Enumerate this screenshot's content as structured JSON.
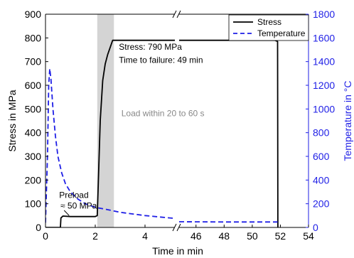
{
  "chart_data": {
    "type": "line",
    "xlabel": "Time in min",
    "ylabel_left": "Stress in MPa",
    "ylabel_right": "Temperature in °C",
    "x_axis": {
      "broken": true,
      "segments": [
        {
          "range": [
            0,
            5.2
          ],
          "ticks": [
            "0",
            "2",
            "4"
          ],
          "tick_values": [
            0,
            2,
            4
          ]
        },
        {
          "range": [
            44.8,
            54
          ],
          "ticks": [
            "46",
            "48",
            "50",
            "52",
            "54"
          ],
          "tick_values": [
            46,
            48,
            50,
            52,
            54
          ]
        }
      ]
    },
    "y_left": {
      "range": [
        0,
        900
      ],
      "ticks": [
        "0",
        "100",
        "200",
        "300",
        "400",
        "500",
        "600",
        "700",
        "800",
        "900"
      ],
      "tick_values": [
        0,
        100,
        200,
        300,
        400,
        500,
        600,
        700,
        800,
        900
      ]
    },
    "y_right": {
      "range": [
        0,
        1800
      ],
      "ticks": [
        "0",
        "200",
        "400",
        "600",
        "800",
        "1000",
        "1200",
        "1400",
        "1600",
        "1800"
      ],
      "tick_values": [
        0,
        200,
        400,
        600,
        800,
        1000,
        1200,
        1400,
        1600,
        1800
      ],
      "color": "#1f1fe6"
    },
    "grid": false,
    "legend": {
      "placement": "top-right",
      "entries": [
        "Stress",
        "Temperature"
      ]
    },
    "series": [
      {
        "name": "Stress",
        "axis": "left",
        "color": "#000000",
        "style": "solid",
        "points": [
          [
            0,
            0
          ],
          [
            0.6,
            0
          ],
          [
            0.62,
            40
          ],
          [
            0.7,
            48
          ],
          [
            1.0,
            46
          ],
          [
            1.5,
            46
          ],
          [
            2.0,
            46
          ],
          [
            2.08,
            50
          ],
          [
            2.12,
            180
          ],
          [
            2.2,
            450
          ],
          [
            2.3,
            620
          ],
          [
            2.4,
            690
          ],
          [
            2.5,
            730
          ],
          [
            2.6,
            760
          ],
          [
            2.7,
            790
          ],
          [
            3.5,
            790
          ],
          [
            4.5,
            790
          ],
          [
            5.2,
            790
          ],
          [
            44.8,
            790
          ],
          [
            48,
            790
          ],
          [
            51.6,
            790
          ],
          [
            51.8,
            785
          ],
          [
            51.82,
            0
          ]
        ]
      },
      {
        "name": "Temperature",
        "axis": "right",
        "color": "#1f1fe6",
        "style": "dashed",
        "points": [
          [
            0,
            40
          ],
          [
            0.08,
            600
          ],
          [
            0.13,
            1200
          ],
          [
            0.17,
            1340
          ],
          [
            0.22,
            1250
          ],
          [
            0.3,
            1000
          ],
          [
            0.4,
            770
          ],
          [
            0.5,
            600
          ],
          [
            0.65,
            460
          ],
          [
            0.8,
            370
          ],
          [
            1.0,
            300
          ],
          [
            1.3,
            240
          ],
          [
            1.6,
            200
          ],
          [
            2.0,
            170
          ],
          [
            2.5,
            150
          ],
          [
            3.0,
            128
          ],
          [
            4.0,
            100
          ],
          [
            5.2,
            76
          ],
          [
            44.8,
            48
          ],
          [
            48,
            46
          ],
          [
            51.8,
            46
          ]
        ]
      }
    ],
    "highlight": {
      "x_range": [
        2.08,
        2.75
      ],
      "color": "#d4d4d4"
    },
    "annotations": [
      {
        "text": "Stress: 790 MPa",
        "x": 2.95,
        "y": 750,
        "axis": "left"
      },
      {
        "text": "Time to failure: 49 min",
        "x": 2.95,
        "y": 695,
        "axis": "left"
      },
      {
        "text": "Load within 20 to 60 s",
        "x": 3.05,
        "y": 470,
        "axis": "left",
        "color": "#888888"
      },
      {
        "text": "Preload",
        "x": 0.55,
        "y": 125,
        "axis": "left"
      },
      {
        "text": "≈ 50 MPa",
        "x": 0.6,
        "y": 80,
        "axis": "left"
      }
    ]
  }
}
